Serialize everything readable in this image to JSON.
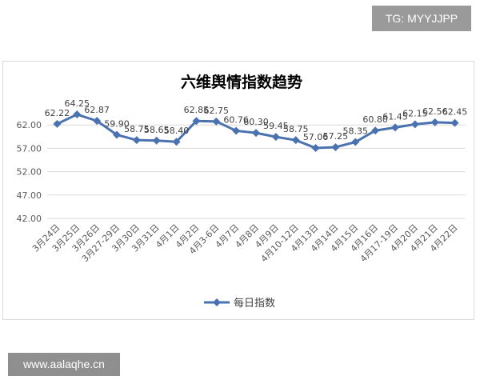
{
  "watermark_top": "TG: MYYJJPP",
  "watermark_bottom": "www.aalaqhe.cn",
  "chart_data": {
    "type": "line",
    "title": "六维舆情指数趋势",
    "xlabel": "",
    "ylabel": "",
    "ylim": [
      42,
      67
    ],
    "yticks": [
      "42.00",
      "47.00",
      "52.00",
      "57.00",
      "62.00"
    ],
    "grid": true,
    "legend_position": "bottom",
    "categories": [
      "3月24日",
      "3月25日",
      "3月26日",
      "3月27-29日",
      "3月30日",
      "3月31日",
      "4月1日",
      "4月2日",
      "4月3-6日",
      "4月7日",
      "4月8日",
      "4月9日",
      "4月10-12日",
      "4月13日",
      "4月14日",
      "4月15日",
      "4月16日",
      "4月17-19日",
      "4月20日",
      "4月21日",
      "4月22日"
    ],
    "series": [
      {
        "name": "每日指数",
        "color": "#4a72b0",
        "values": [
          62.22,
          64.25,
          62.87,
          59.9,
          58.75,
          58.65,
          58.4,
          62.85,
          62.75,
          60.76,
          60.3,
          59.45,
          58.75,
          57.06,
          57.25,
          58.35,
          60.8,
          61.45,
          62.15,
          62.56,
          62.45
        ],
        "labels": [
          "62.22",
          "64.25",
          "62.87",
          "59.90",
          "58.75",
          "58.65",
          "58.40",
          "62.85",
          "62.75",
          "60.76",
          "60.30",
          "59.45",
          "58.75",
          "57.06",
          "57.25",
          "58.35",
          "60.80",
          "61.45",
          "62.15",
          "62.56",
          "62.45"
        ]
      }
    ]
  }
}
